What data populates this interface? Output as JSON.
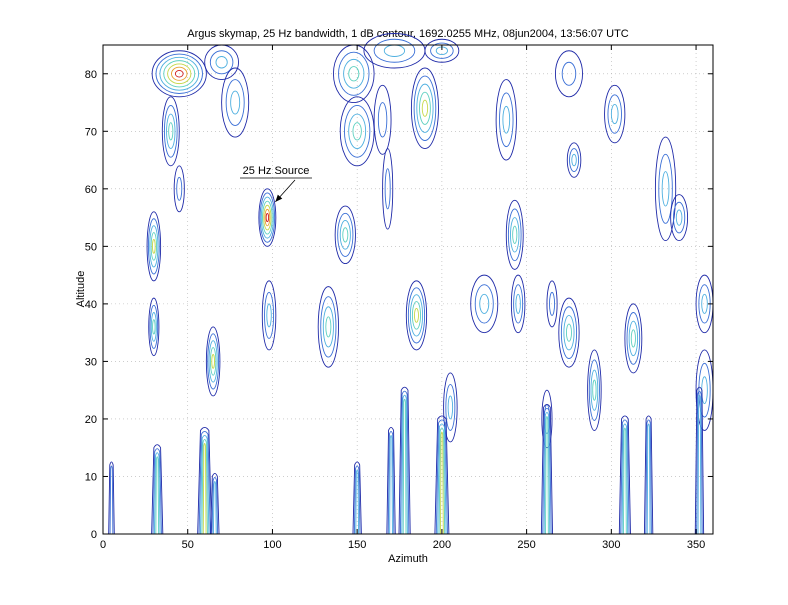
{
  "chart_data": {
    "type": "contour",
    "title": "Argus skymap, 25 Hz bandwidth, 1 dB contour, 1692.0255 MHz, 08jun2004, 13:56:07 UTC",
    "xlabel": "Azimuth",
    "ylabel": "Altitude",
    "xlim": [
      0,
      360
    ],
    "ylim": [
      0,
      85
    ],
    "xticks": [
      0,
      50,
      100,
      150,
      200,
      250,
      300,
      350
    ],
    "yticks": [
      0,
      10,
      20,
      30,
      40,
      50,
      60,
      70,
      80
    ],
    "grid": true,
    "annotation": {
      "text": "25 Hz Source",
      "target": [
        97,
        56
      ]
    },
    "contour_colors": [
      "#1f2aa8",
      "#3a6fd6",
      "#4fb0e0",
      "#5ed0c0",
      "#c6d84a",
      "#e8a030",
      "#d02020"
    ],
    "features": [
      {
        "x": 45,
        "y": 80,
        "rx": 16,
        "ry": 4,
        "levels": 7
      },
      {
        "x": 70,
        "y": 82,
        "rx": 10,
        "ry": 3,
        "levels": 3
      },
      {
        "x": 148,
        "y": 80,
        "rx": 12,
        "ry": 5,
        "levels": 4
      },
      {
        "x": 172,
        "y": 84,
        "rx": 18,
        "ry": 3,
        "levels": 3
      },
      {
        "x": 200,
        "y": 84,
        "rx": 10,
        "ry": 2,
        "levels": 3
      },
      {
        "x": 190,
        "y": 74,
        "rx": 8,
        "ry": 7,
        "levels": 5
      },
      {
        "x": 40,
        "y": 70,
        "rx": 5,
        "ry": 6,
        "levels": 4
      },
      {
        "x": 78,
        "y": 75,
        "rx": 8,
        "ry": 6,
        "levels": 3
      },
      {
        "x": 150,
        "y": 70,
        "rx": 10,
        "ry": 6,
        "levels": 4
      },
      {
        "x": 165,
        "y": 72,
        "rx": 5,
        "ry": 6,
        "levels": 2
      },
      {
        "x": 238,
        "y": 72,
        "rx": 6,
        "ry": 7,
        "levels": 3
      },
      {
        "x": 275,
        "y": 80,
        "rx": 8,
        "ry": 4,
        "levels": 2
      },
      {
        "x": 302,
        "y": 73,
        "rx": 6,
        "ry": 5,
        "levels": 3
      },
      {
        "x": 278,
        "y": 65,
        "rx": 4,
        "ry": 3,
        "levels": 3
      },
      {
        "x": 332,
        "y": 60,
        "rx": 6,
        "ry": 9,
        "levels": 3
      },
      {
        "x": 97,
        "y": 55,
        "rx": 5,
        "ry": 5,
        "levels": 7
      },
      {
        "x": 30,
        "y": 50,
        "rx": 4,
        "ry": 6,
        "levels": 5
      },
      {
        "x": 45,
        "y": 60,
        "rx": 3,
        "ry": 4,
        "levels": 2
      },
      {
        "x": 143,
        "y": 52,
        "rx": 6,
        "ry": 5,
        "levels": 4
      },
      {
        "x": 168,
        "y": 60,
        "rx": 3,
        "ry": 7,
        "levels": 2
      },
      {
        "x": 243,
        "y": 52,
        "rx": 5,
        "ry": 6,
        "levels": 4
      },
      {
        "x": 340,
        "y": 55,
        "rx": 5,
        "ry": 4,
        "levels": 3
      },
      {
        "x": 185,
        "y": 38,
        "rx": 6,
        "ry": 6,
        "levels": 5
      },
      {
        "x": 225,
        "y": 40,
        "rx": 8,
        "ry": 5,
        "levels": 3
      },
      {
        "x": 245,
        "y": 40,
        "rx": 4,
        "ry": 5,
        "levels": 3
      },
      {
        "x": 265,
        "y": 40,
        "rx": 3,
        "ry": 4,
        "levels": 2
      },
      {
        "x": 355,
        "y": 40,
        "rx": 5,
        "ry": 5,
        "levels": 3
      },
      {
        "x": 133,
        "y": 36,
        "rx": 6,
        "ry": 7,
        "levels": 4
      },
      {
        "x": 98,
        "y": 38,
        "rx": 4,
        "ry": 6,
        "levels": 3
      },
      {
        "x": 30,
        "y": 36,
        "rx": 3,
        "ry": 5,
        "levels": 4
      },
      {
        "x": 65,
        "y": 30,
        "rx": 4,
        "ry": 6,
        "levels": 5
      },
      {
        "x": 275,
        "y": 35,
        "rx": 6,
        "ry": 6,
        "levels": 4
      },
      {
        "x": 313,
        "y": 34,
        "rx": 5,
        "ry": 6,
        "levels": 4
      },
      {
        "x": 290,
        "y": 25,
        "rx": 4,
        "ry": 7,
        "levels": 4
      },
      {
        "x": 355,
        "y": 25,
        "rx": 5,
        "ry": 7,
        "levels": 3
      },
      {
        "x": 205,
        "y": 22,
        "rx": 4,
        "ry": 6,
        "levels": 3
      },
      {
        "x": 262,
        "y": 20,
        "rx": 3,
        "ry": 5,
        "levels": 2
      }
    ],
    "streaks": [
      {
        "x": 5,
        "y0": 0,
        "y1": 12,
        "levels": 2
      },
      {
        "x": 32,
        "y0": 0,
        "y1": 15,
        "levels": 4
      },
      {
        "x": 60,
        "y0": 0,
        "y1": 18,
        "levels": 5
      },
      {
        "x": 66,
        "y0": 0,
        "y1": 10,
        "levels": 3
      },
      {
        "x": 150,
        "y0": 0,
        "y1": 12,
        "levels": 3
      },
      {
        "x": 170,
        "y0": 0,
        "y1": 18,
        "levels": 3
      },
      {
        "x": 178,
        "y0": 0,
        "y1": 25,
        "levels": 4
      },
      {
        "x": 200,
        "y0": 0,
        "y1": 20,
        "levels": 5
      },
      {
        "x": 262,
        "y0": 0,
        "y1": 22,
        "levels": 4
      },
      {
        "x": 308,
        "y0": 0,
        "y1": 20,
        "levels": 4
      },
      {
        "x": 322,
        "y0": 0,
        "y1": 20,
        "levels": 3
      },
      {
        "x": 352,
        "y0": 0,
        "y1": 25,
        "levels": 3
      }
    ]
  }
}
